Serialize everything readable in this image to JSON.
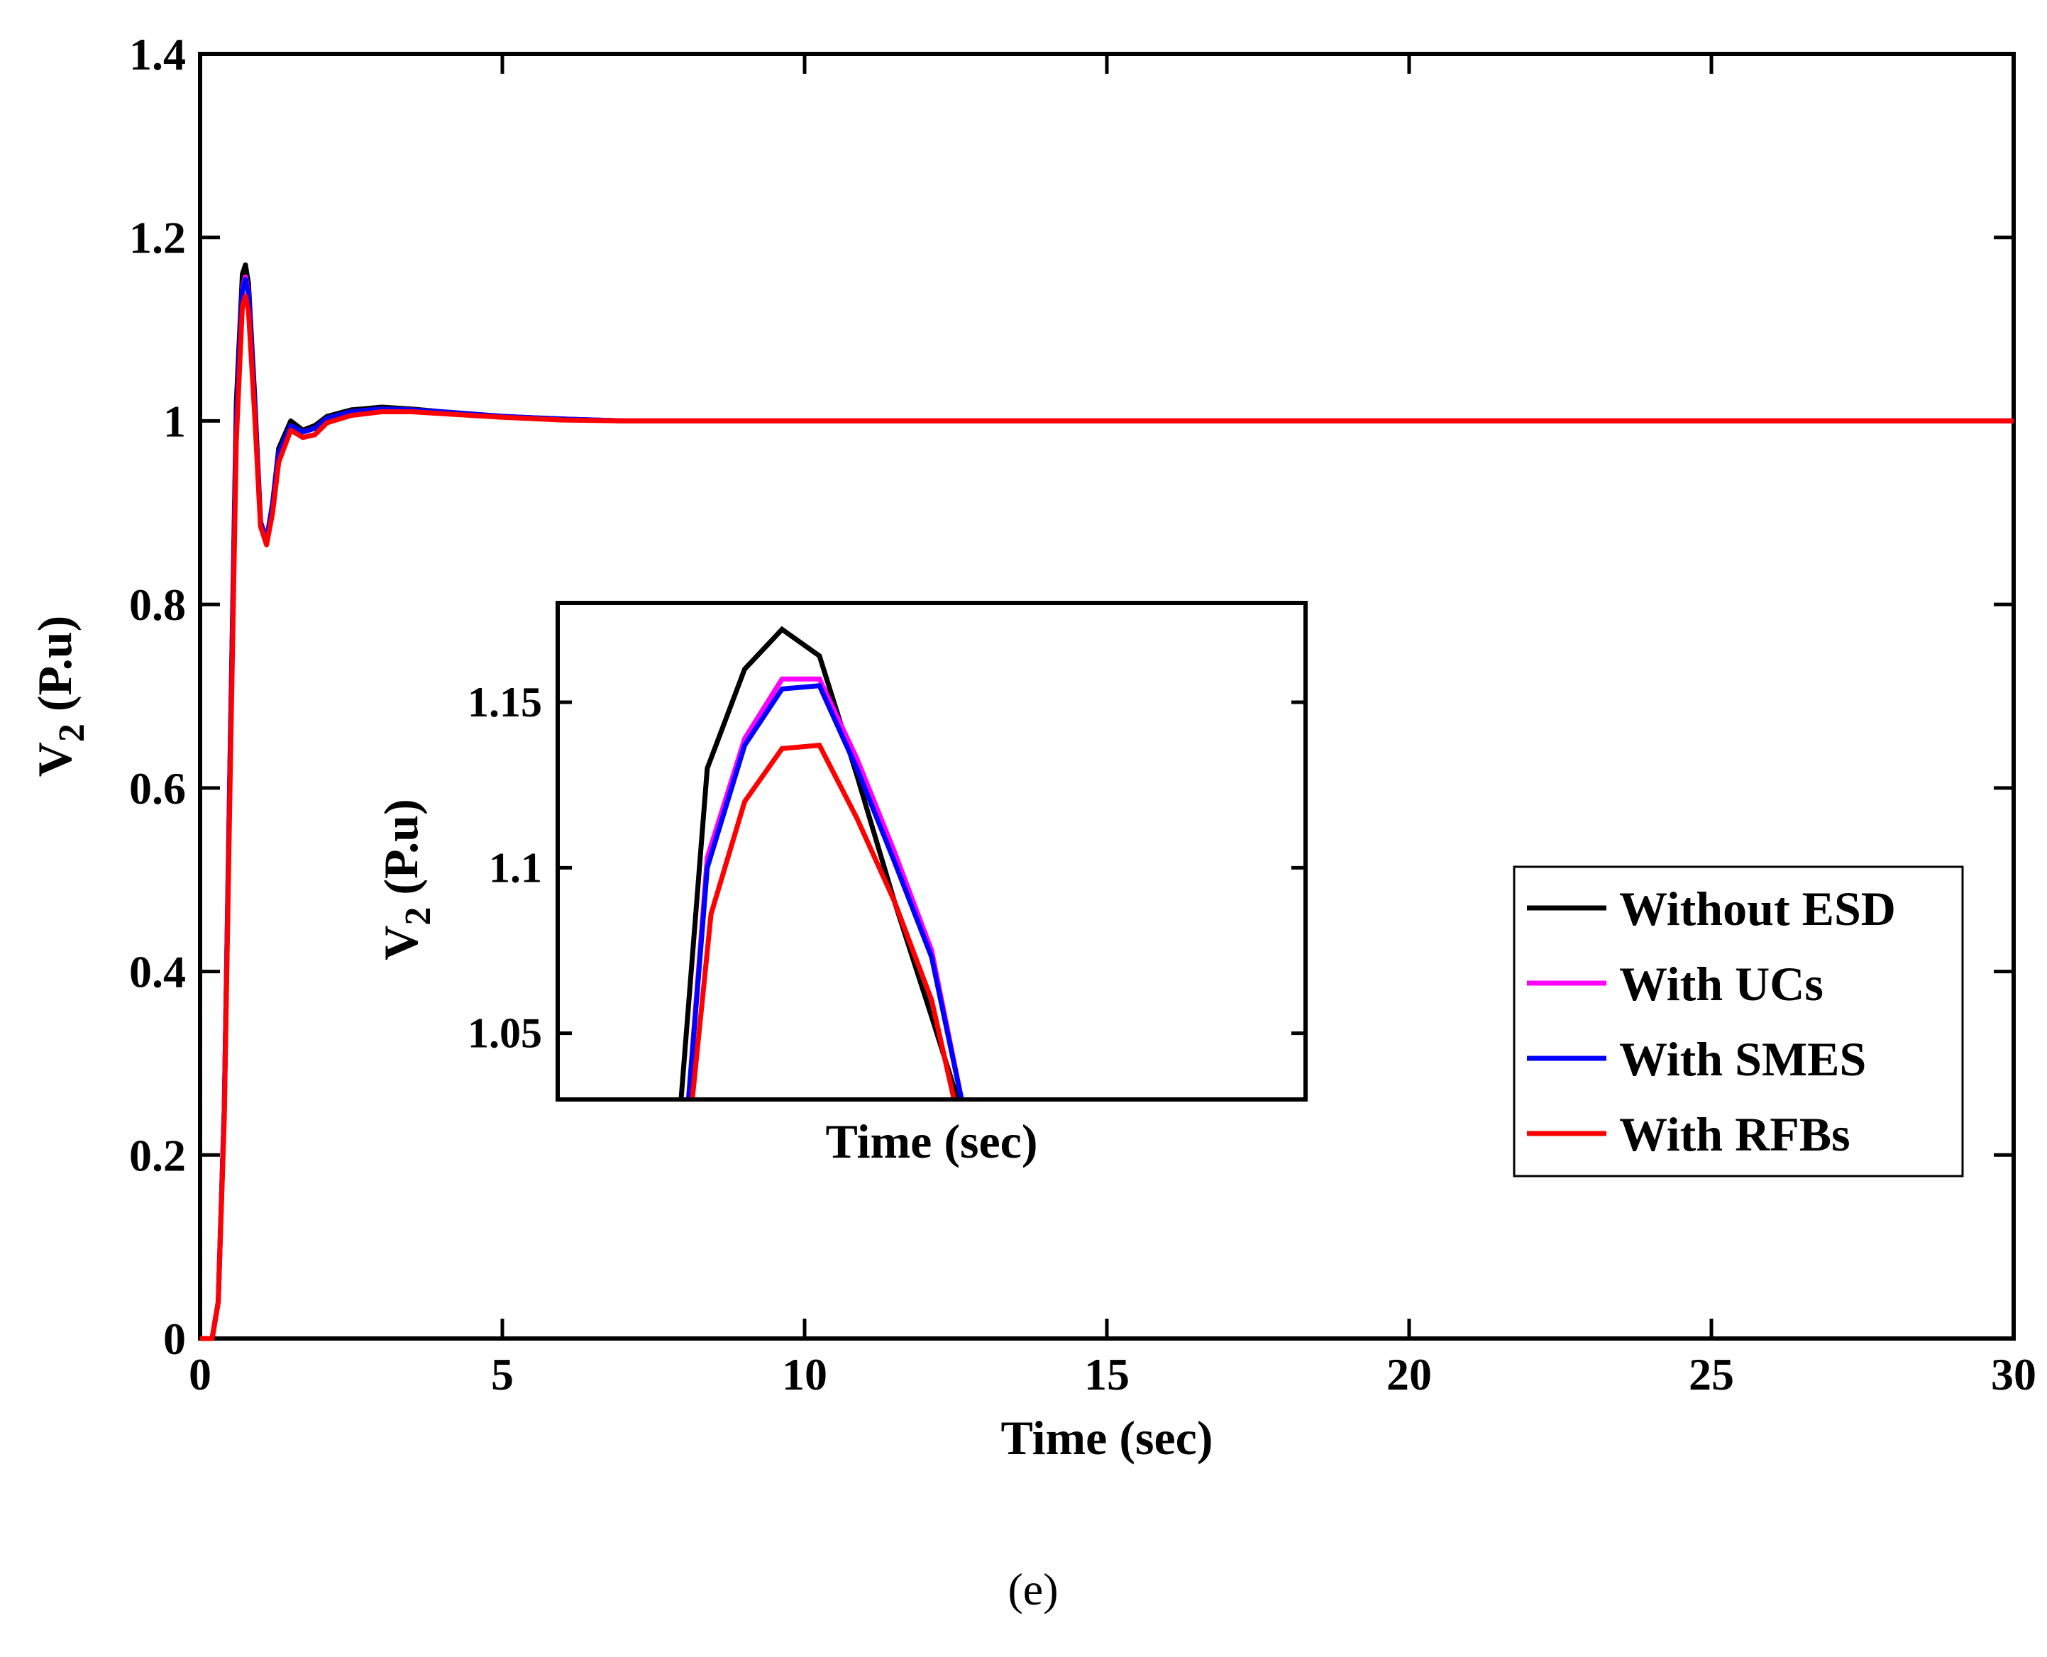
{
  "chart_data": [
    {
      "type": "line",
      "title": "",
      "xlabel": "Time (sec)",
      "ylabel": "V",
      "ylabel_sub": "2",
      "ylabel_unit": " (P.u)",
      "xlim": [
        0,
        30
      ],
      "ylim": [
        0,
        1.4
      ],
      "xticks": [
        0,
        5,
        10,
        15,
        20,
        25,
        30
      ],
      "xtick_labels": [
        "0",
        "5",
        "10",
        "15",
        "20",
        "25",
        "30"
      ],
      "yticks": [
        0,
        0.2,
        0.4,
        0.6,
        0.8,
        1.0,
        1.2,
        1.4
      ],
      "ytick_labels": [
        "0",
        "0.2",
        "0.4",
        "0.6",
        "0.8",
        "1",
        "1.2",
        "1.4"
      ],
      "grid": false,
      "legend_position": "bottom-right",
      "series": [
        {
          "name": "Without ESD",
          "color": "#000000",
          "x": [
            0,
            0.2,
            0.3,
            0.4,
            0.5,
            0.6,
            0.7,
            0.75,
            0.8,
            0.9,
            1.0,
            1.1,
            1.2,
            1.3,
            1.5,
            1.7,
            1.9,
            2.1,
            2.5,
            3.0,
            3.5,
            4.0,
            5.0,
            6.0,
            7.0,
            8.0,
            30
          ],
          "y": [
            0,
            0,
            0.04,
            0.25,
            0.65,
            1.02,
            1.16,
            1.17,
            1.15,
            1.03,
            0.89,
            0.87,
            0.91,
            0.97,
            1.0,
            0.99,
            0.995,
            1.005,
            1.012,
            1.015,
            1.013,
            1.01,
            1.005,
            1.002,
            1.0,
            1.0,
            1.0
          ]
        },
        {
          "name": "With UCs",
          "color": "#ff00ff",
          "x": [
            0,
            0.2,
            0.3,
            0.4,
            0.5,
            0.6,
            0.7,
            0.75,
            0.8,
            0.9,
            1.0,
            1.1,
            1.2,
            1.3,
            1.5,
            1.7,
            1.9,
            2.1,
            2.5,
            3.0,
            3.5,
            4.0,
            5.0,
            6.0,
            7.0,
            8.0,
            30
          ],
          "y": [
            0,
            0,
            0.04,
            0.25,
            0.64,
            1.0,
            1.145,
            1.157,
            1.14,
            1.02,
            0.89,
            0.87,
            0.91,
            0.965,
            0.995,
            0.988,
            0.992,
            1.003,
            1.01,
            1.013,
            1.012,
            1.01,
            1.005,
            1.002,
            1.0,
            1.0,
            1.0
          ]
        },
        {
          "name": "With SMES",
          "color": "#0000ff",
          "x": [
            0,
            0.2,
            0.3,
            0.4,
            0.5,
            0.6,
            0.7,
            0.75,
            0.8,
            0.9,
            1.0,
            1.1,
            1.2,
            1.3,
            1.5,
            1.7,
            1.9,
            2.1,
            2.5,
            3.0,
            3.5,
            4.0,
            5.0,
            6.0,
            7.0,
            8.0,
            30
          ],
          "y": [
            0,
            0,
            0.04,
            0.25,
            0.64,
            1.0,
            1.143,
            1.154,
            1.138,
            1.02,
            0.89,
            0.87,
            0.91,
            0.965,
            0.995,
            0.988,
            0.992,
            1.003,
            1.01,
            1.013,
            1.012,
            1.01,
            1.005,
            1.002,
            1.0,
            1.0,
            1.0
          ]
        },
        {
          "name": "With RFBs",
          "color": "#ff0000",
          "x": [
            0,
            0.2,
            0.3,
            0.4,
            0.5,
            0.6,
            0.7,
            0.75,
            0.8,
            0.9,
            1.0,
            1.1,
            1.2,
            1.3,
            1.5,
            1.7,
            1.9,
            2.1,
            2.5,
            3.0,
            3.5,
            4.0,
            5.0,
            6.0,
            7.0,
            8.0,
            30
          ],
          "y": [
            0,
            0,
            0.04,
            0.24,
            0.62,
            0.98,
            1.125,
            1.136,
            1.12,
            1.01,
            0.885,
            0.865,
            0.9,
            0.955,
            0.99,
            0.982,
            0.985,
            0.998,
            1.006,
            1.01,
            1.01,
            1.008,
            1.004,
            1.001,
            1.0,
            1.0,
            1.0
          ]
        }
      ]
    },
    {
      "type": "line",
      "title": "",
      "xlabel": "Time (sec)",
      "ylabel": "V",
      "ylabel_sub": "2",
      "ylabel_unit": " (P.u)",
      "xlim": [
        0.4,
        1.4
      ],
      "ylim": [
        1.03,
        1.18
      ],
      "yticks": [
        1.05,
        1.1,
        1.15
      ],
      "ytick_labels": [
        "1.05",
        "1.1",
        "1.15"
      ],
      "xtick_labels_visible": false,
      "grid": false,
      "series": [
        {
          "name": "Without ESD",
          "color": "#000000",
          "x": [
            0.565,
            0.6,
            0.65,
            0.7,
            0.75,
            0.8,
            0.85,
            0.9,
            0.935
          ],
          "y": [
            1.03,
            1.13,
            1.16,
            1.172,
            1.164,
            1.128,
            1.09,
            1.055,
            1.03
          ]
        },
        {
          "name": "With UCs",
          "color": "#ff00ff",
          "x": [
            0.575,
            0.6,
            0.65,
            0.7,
            0.75,
            0.8,
            0.85,
            0.9,
            0.94
          ],
          "y": [
            1.03,
            1.103,
            1.139,
            1.157,
            1.157,
            1.133,
            1.105,
            1.075,
            1.03
          ]
        },
        {
          "name": "With SMES",
          "color": "#0000ff",
          "x": [
            0.575,
            0.6,
            0.65,
            0.7,
            0.75,
            0.8,
            0.85,
            0.9,
            0.94
          ],
          "y": [
            1.03,
            1.1,
            1.137,
            1.154,
            1.155,
            1.13,
            1.102,
            1.073,
            1.03
          ]
        },
        {
          "name": "With RFBs",
          "color": "#ff0000",
          "x": [
            0.58,
            0.605,
            0.65,
            0.7,
            0.75,
            0.8,
            0.85,
            0.9,
            0.93
          ],
          "y": [
            1.03,
            1.086,
            1.12,
            1.136,
            1.137,
            1.115,
            1.09,
            1.06,
            1.03
          ]
        }
      ]
    }
  ],
  "legend": {
    "entries": [
      "Without ESD",
      "With UCs",
      "With SMES",
      "With RFBs"
    ],
    "colors": [
      "#000000",
      "#ff00ff",
      "#0000ff",
      "#ff0000"
    ]
  },
  "caption": "(e)"
}
